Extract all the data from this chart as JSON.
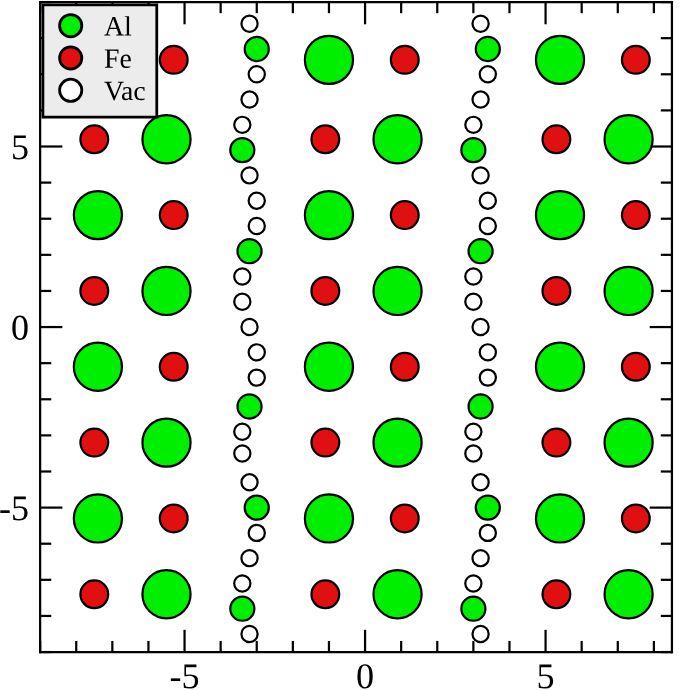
{
  "chart_data": {
    "type": "scatter",
    "legend": "top left",
    "grid": false,
    "marker": "circle",
    "xlim": [
      -9,
      8.5
    ],
    "ylim": [
      -9,
      9
    ],
    "xticks": [
      {
        "value": -9,
        "label": null
      },
      {
        "value": -8,
        "label": null
      },
      {
        "value": -7,
        "label": null
      },
      {
        "value": -6,
        "label": null
      },
      -5,
      {
        "value": -4,
        "label": null
      },
      {
        "value": -3,
        "label": null
      },
      {
        "value": -2,
        "label": null
      },
      {
        "value": -1,
        "label": null
      },
      0,
      {
        "value": 1,
        "label": null
      },
      {
        "value": 2,
        "label": null
      },
      {
        "value": 3,
        "label": null
      },
      {
        "value": 4,
        "label": null
      },
      5,
      {
        "value": 6,
        "label": null
      },
      {
        "value": 7,
        "label": null
      },
      {
        "value": 8,
        "label": null
      }
    ],
    "yticks": [
      {
        "value": -9,
        "label": null
      },
      {
        "value": -8,
        "label": null
      },
      {
        "value": -7,
        "label": null
      },
      {
        "value": -6,
        "label": null
      },
      -5,
      {
        "value": -4,
        "label": null
      },
      {
        "value": -3,
        "label": null
      },
      {
        "value": -2,
        "label": null
      },
      {
        "value": -1,
        "label": null
      },
      0,
      {
        "value": 1,
        "label": null
      },
      {
        "value": 2,
        "label": null
      },
      {
        "value": 3,
        "label": null
      },
      {
        "value": 4,
        "label": null
      },
      5,
      {
        "value": 6,
        "label": null
      },
      {
        "value": 7,
        "label": null
      },
      {
        "value": 8,
        "label": null
      },
      {
        "value": 9,
        "label": null
      }
    ],
    "series": [
      {
        "name": "Al",
        "type": "bubble",
        "color": "#00ee00",
        "x": [
          -1.0,
          5.4,
          -7.4,
          -1.0,
          5.4,
          -7.4,
          -1.0,
          5.4,
          -7.4,
          -1.0,
          5.4,
          -5.5,
          0.9,
          7.3,
          -5.5,
          0.9,
          7.3,
          -5.5,
          0.9,
          7.3,
          -5.5,
          0.9,
          7.3,
          -3.0,
          -3.4,
          -3.2,
          -3.2,
          -3.0,
          -3.4,
          3.4,
          3.0,
          3.2,
          3.2,
          3.4,
          3.0
        ],
        "values": [
          7.4,
          7.4,
          3.1,
          3.1,
          3.1,
          -1.1,
          -1.1,
          -1.1,
          -5.3,
          -5.3,
          -5.3,
          5.2,
          5.2,
          5.2,
          1.0,
          1.0,
          1.0,
          -3.2,
          -3.2,
          -3.2,
          -7.4,
          -7.4,
          -7.4,
          7.7,
          4.9,
          2.1,
          -2.2,
          -5.0,
          -7.8,
          7.7,
          4.9,
          2.1,
          -2.2,
          -5.0,
          -7.8
        ],
        "sizes": [
          1,
          1,
          1,
          1,
          1,
          1,
          1,
          1,
          1,
          1,
          1,
          1,
          1,
          1,
          1,
          1,
          1,
          1,
          1,
          1,
          1,
          1,
          1,
          0.25,
          0.25,
          0.25,
          0.25,
          0.25,
          0.25,
          0.25,
          0.25,
          0.25,
          0.25,
          0.25,
          0.25
        ]
      },
      {
        "name": "Fe",
        "color": "#e01010",
        "x": [
          -5.3,
          1.1,
          7.5,
          -5.3,
          1.1,
          7.5,
          -5.3,
          1.1,
          7.5,
          -5.3,
          1.1,
          7.5,
          -7.5,
          -1.1,
          5.3,
          -7.5,
          -1.1,
          5.3,
          -7.5,
          -1.1,
          5.3,
          -7.5,
          -1.1,
          5.3
        ],
        "values": [
          7.4,
          7.4,
          7.4,
          3.1,
          3.1,
          3.1,
          -1.1,
          -1.1,
          -1.1,
          -5.3,
          -5.3,
          -5.3,
          5.2,
          5.2,
          5.2,
          1.0,
          1.0,
          1.0,
          -3.2,
          -3.2,
          -3.2,
          -7.4,
          -7.4,
          -7.4
        ]
      },
      {
        "name": "Vac",
        "color": "#ffffff",
        "x": [
          -3.2,
          -3.0,
          -3.2,
          -3.4,
          -3.2,
          -3.0,
          -3.0,
          -3.4,
          -3.4,
          -3.2,
          -3.0,
          -3.0,
          -3.4,
          -3.4,
          -3.2,
          -3.0,
          -3.2,
          -3.4,
          -3.2,
          3.2,
          3.4,
          3.2,
          3.0,
          3.2,
          3.4,
          3.4,
          3.0,
          3.0,
          3.2,
          3.4,
          3.4,
          3.0,
          3.0,
          3.2,
          3.4,
          3.2,
          3.0,
          3.2
        ],
        "values": [
          8.4,
          7.0,
          6.3,
          5.6,
          4.2,
          3.5,
          2.8,
          1.4,
          0.7,
          0.0,
          -0.7,
          -1.4,
          -2.9,
          -3.5,
          -4.3,
          -5.7,
          -6.4,
          -7.1,
          -8.5,
          8.4,
          7.0,
          6.3,
          5.6,
          4.2,
          3.5,
          2.8,
          1.4,
          0.7,
          0.0,
          -0.7,
          -1.4,
          -2.9,
          -3.5,
          -4.3,
          -5.7,
          -6.4,
          -7.1,
          -8.5
        ]
      }
    ]
  }
}
